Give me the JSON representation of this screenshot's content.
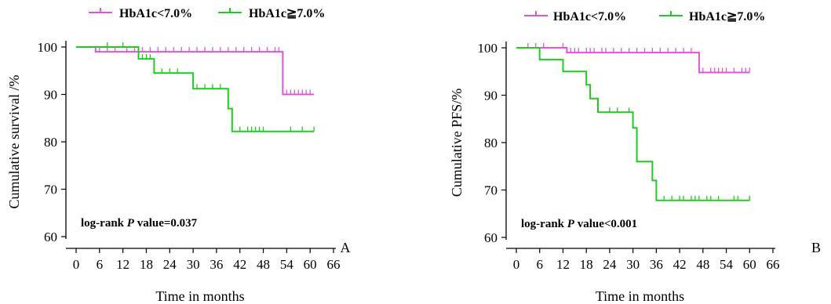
{
  "colors": {
    "pink": "#e055d8",
    "green": "#1fcc1f",
    "axis": "#000000"
  },
  "legend": [
    {
      "label": "HbA1c<7.0%",
      "color": "#e055d8"
    },
    {
      "label": "HbA1c≧7.0%",
      "color": "#1fcc1f"
    }
  ],
  "chart_data": [
    {
      "type": "line",
      "subtype": "kaplan-meier",
      "panel_label": "A",
      "xlabel": "Time in months",
      "ylabel": "Cumulative survival /%",
      "xlim": [
        0,
        66
      ],
      "ylim": [
        60,
        100
      ],
      "xticks": [
        "0",
        "6",
        "12",
        "18",
        "24",
        "30",
        "36",
        "42",
        "48",
        "54",
        "60",
        "66"
      ],
      "yticks": [
        "60",
        "70",
        "80",
        "90",
        "100"
      ],
      "annotation": {
        "prefix": "log-rank ",
        "italic": "P",
        "suffix": " value=0.037"
      },
      "series": [
        {
          "name": "HbA1c<7.0%",
          "color": "#e055d8",
          "steps": [
            [
              0,
              100
            ],
            [
              5,
              99
            ],
            [
              53,
              90
            ],
            [
              61,
              90
            ]
          ],
          "censor": [
            6,
            8,
            10,
            13,
            15,
            17,
            19,
            21,
            23,
            25,
            27,
            29,
            31,
            33,
            35,
            37,
            39,
            41,
            43,
            45,
            47,
            49,
            51,
            52,
            54,
            55,
            56,
            57,
            58,
            59,
            60
          ]
        },
        {
          "name": "HbA1c≧7.0%",
          "color": "#1fcc1f",
          "steps": [
            [
              0,
              100
            ],
            [
              16,
              97.5
            ],
            [
              20,
              94.5
            ],
            [
              30,
              91.2
            ],
            [
              39,
              87
            ],
            [
              40,
              82.2
            ],
            [
              61,
              82.2
            ]
          ],
          "censor": [
            8,
            12,
            17,
            18,
            19,
            22,
            24,
            26,
            31,
            33,
            35,
            37,
            42,
            44,
            45,
            46,
            47,
            48,
            55,
            58,
            61
          ]
        }
      ]
    },
    {
      "type": "line",
      "subtype": "kaplan-meier",
      "panel_label": "B",
      "xlabel": "Time in months",
      "ylabel": "Cumulative PFS/%",
      "xlim": [
        0,
        66
      ],
      "ylim": [
        60,
        100
      ],
      "xticks": [
        "0",
        "6",
        "12",
        "18",
        "24",
        "30",
        "36",
        "42",
        "48",
        "54",
        "60",
        "66"
      ],
      "yticks": [
        "60",
        "70",
        "80",
        "90",
        "100"
      ],
      "annotation": {
        "prefix": "log-rank ",
        "italic": "P",
        "suffix": " value<0.001"
      },
      "series": [
        {
          "name": "HbA1c<7.0%",
          "color": "#e055d8",
          "steps": [
            [
              0,
              100
            ],
            [
              13,
              99
            ],
            [
              47,
              94.8
            ],
            [
              60,
              94.8
            ]
          ],
          "censor": [
            3,
            5,
            7,
            12,
            14,
            15,
            16,
            18,
            19,
            20,
            22,
            23,
            25,
            27,
            29,
            31,
            33,
            35,
            37,
            39,
            41,
            43,
            45,
            48,
            50,
            51,
            52,
            53,
            54,
            56,
            58,
            59,
            60
          ]
        },
        {
          "name": "HbA1c≧7.0%",
          "color": "#1fcc1f",
          "steps": [
            [
              0,
              100
            ],
            [
              6,
              97.5
            ],
            [
              12,
              95
            ],
            [
              18,
              92.2
            ],
            [
              19,
              89.3
            ],
            [
              21,
              86.4
            ],
            [
              30,
              83.1
            ],
            [
              31,
              76
            ],
            [
              35,
              72
            ],
            [
              36,
              67.8
            ],
            [
              60,
              67.8
            ]
          ],
          "censor": [
            6,
            18,
            24,
            26,
            29,
            38,
            40,
            42,
            43,
            45,
            46,
            47,
            49,
            50,
            52,
            56,
            57,
            60
          ]
        }
      ]
    }
  ]
}
